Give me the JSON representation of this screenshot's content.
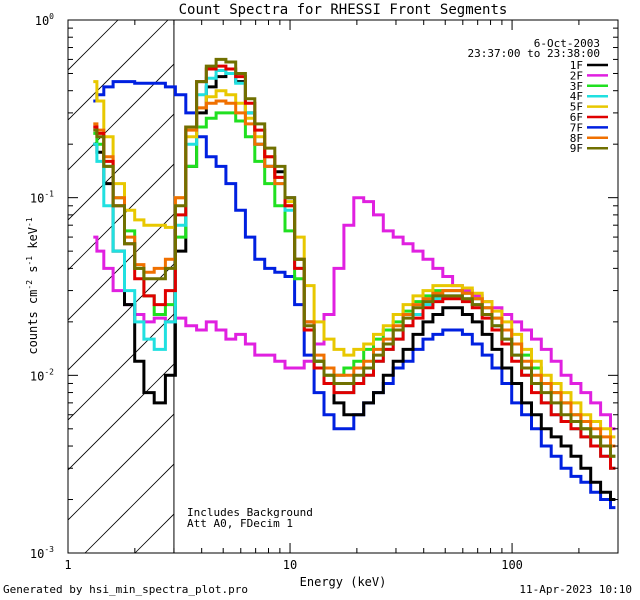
{
  "footer": {
    "generated_by": "Generated by hsi_min_spectra_plot.pro",
    "timestamp": "11-Apr-2023 10:10"
  },
  "chart_data": {
    "type": "line",
    "title": "Count Spectra for RHESSI Front Segments",
    "xlabel": "Energy (keV)",
    "ylabel_parts": [
      "counts cm",
      "-2",
      " s",
      "-1",
      " keV",
      "-1"
    ],
    "xscale": "log",
    "yscale": "log",
    "xlim": [
      1.0,
      300.0
    ],
    "ylim": [
      0.001,
      1.0
    ],
    "x_ticks": [
      {
        "value": 1,
        "label": "1"
      },
      {
        "value": 10,
        "label": "10"
      },
      {
        "value": 100,
        "label": "100"
      }
    ],
    "y_ticks": [
      {
        "value": 1,
        "base": "10",
        "exp": "0"
      },
      {
        "value": 0.1,
        "base": "10",
        "exp": "-1"
      },
      {
        "value": 0.01,
        "base": "10",
        "exp": "-2"
      },
      {
        "value": 0.001,
        "base": "10",
        "exp": "-3"
      }
    ],
    "hatched_region": {
      "x_min": 1.0,
      "x_max": 3.0
    },
    "date": "6-Oct-2003",
    "time_range": "23:37:00 to 23:38:00",
    "annotations": [
      "Includes Background",
      "Att A0, FDecim 1"
    ],
    "series": [
      {
        "name": "1F",
        "color": "#000000",
        "peak": 0.5,
        "low": 0.007,
        "bump": 0.024
      },
      {
        "name": "2F",
        "color": "#e020e0",
        "peak": 0.02,
        "low": 0.02,
        "bump": 0.03
      },
      {
        "name": "3F",
        "color": "#20e020",
        "peak": 0.3,
        "low": 0.012,
        "bump": 0.03
      },
      {
        "name": "4F",
        "color": "#20e0e0",
        "peak": 0.52,
        "low": 0.01,
        "bump": 0.028
      },
      {
        "name": "5F",
        "color": "#e8c800",
        "peak": 0.4,
        "low": 0.018,
        "bump": 0.032
      },
      {
        "name": "6F",
        "color": "#e00000",
        "peak": 0.55,
        "low": 0.01,
        "bump": 0.027
      },
      {
        "name": "7F",
        "color": "#0020e0",
        "peak": 0.45,
        "low": 0.006,
        "bump": 0.018
      },
      {
        "name": "8F",
        "color": "#f07000",
        "peak": 0.35,
        "low": 0.012,
        "bump": 0.03
      },
      {
        "name": "9F",
        "color": "#707000",
        "peak": 0.6,
        "low": 0.01,
        "bump": 0.028
      }
    ],
    "energy_bins": [
      1.3,
      1.4,
      1.5,
      1.7,
      1.9,
      2.1,
      2.3,
      2.6,
      2.9,
      3.2,
      3.6,
      4.0,
      4.4,
      4.9,
      5.4,
      6.0,
      6.6,
      7.3,
      8.1,
      9.0,
      10.0,
      11.0,
      12.2,
      13.5,
      15.0,
      16.6,
      18.4,
      20.4,
      22.6,
      25.0,
      27.7,
      30.7,
      34.0,
      37.7,
      41.8,
      46.3,
      51.3,
      56.8,
      62.9,
      69.7,
      77.2,
      85.5,
      94.7,
      104.9,
      116.2,
      128.7,
      142.6,
      158.0,
      175.0,
      193.9,
      214.8,
      238.0,
      263.6,
      292.0
    ],
    "values": {
      "1F": [
        0.2,
        0.18,
        0.12,
        0.05,
        0.025,
        0.012,
        0.008,
        0.007,
        0.01,
        0.05,
        0.15,
        0.3,
        0.42,
        0.48,
        0.5,
        0.45,
        0.3,
        0.2,
        0.15,
        0.14,
        0.1,
        0.045,
        0.02,
        0.012,
        0.009,
        0.007,
        0.006,
        0.006,
        0.007,
        0.008,
        0.01,
        0.012,
        0.014,
        0.017,
        0.02,
        0.022,
        0.024,
        0.024,
        0.022,
        0.02,
        0.017,
        0.014,
        0.011,
        0.009,
        0.007,
        0.006,
        0.005,
        0.0045,
        0.004,
        0.0035,
        0.003,
        0.0025,
        0.0022,
        0.002
      ],
      "2F": [
        0.06,
        0.05,
        0.04,
        0.03,
        0.025,
        0.022,
        0.02,
        0.021,
        0.02,
        0.021,
        0.019,
        0.018,
        0.02,
        0.018,
        0.016,
        0.017,
        0.015,
        0.013,
        0.013,
        0.012,
        0.011,
        0.011,
        0.012,
        0.015,
        0.022,
        0.04,
        0.07,
        0.1,
        0.095,
        0.08,
        0.065,
        0.06,
        0.055,
        0.05,
        0.045,
        0.04,
        0.036,
        0.032,
        0.03,
        0.028,
        0.026,
        0.024,
        0.022,
        0.02,
        0.018,
        0.016,
        0.014,
        0.012,
        0.01,
        0.009,
        0.008,
        0.007,
        0.006,
        0.005
      ],
      "3F": [
        0.23,
        0.2,
        0.15,
        0.1,
        0.065,
        0.04,
        0.028,
        0.022,
        0.025,
        0.06,
        0.15,
        0.25,
        0.28,
        0.3,
        0.3,
        0.27,
        0.22,
        0.16,
        0.12,
        0.09,
        0.065,
        0.035,
        0.018,
        0.012,
        0.01,
        0.01,
        0.011,
        0.012,
        0.014,
        0.016,
        0.018,
        0.02,
        0.023,
        0.026,
        0.028,
        0.03,
        0.03,
        0.03,
        0.029,
        0.027,
        0.024,
        0.021,
        0.018,
        0.015,
        0.013,
        0.011,
        0.009,
        0.008,
        0.007,
        0.006,
        0.005,
        0.0045,
        0.004,
        0.0035
      ],
      "4F": [
        0.2,
        0.16,
        0.09,
        0.05,
        0.03,
        0.02,
        0.016,
        0.014,
        0.02,
        0.07,
        0.2,
        0.38,
        0.47,
        0.52,
        0.5,
        0.44,
        0.3,
        0.2,
        0.15,
        0.12,
        0.085,
        0.04,
        0.018,
        0.011,
        0.009,
        0.008,
        0.008,
        0.009,
        0.01,
        0.012,
        0.014,
        0.016,
        0.019,
        0.022,
        0.025,
        0.027,
        0.028,
        0.028,
        0.027,
        0.025,
        0.022,
        0.019,
        0.016,
        0.013,
        0.01,
        0.009,
        0.007,
        0.006,
        0.0055,
        0.005,
        0.0045,
        0.004,
        0.0035,
        0.003
      ],
      "5F": [
        0.45,
        0.35,
        0.22,
        0.12,
        0.085,
        0.075,
        0.07,
        0.07,
        0.068,
        0.1,
        0.22,
        0.32,
        0.37,
        0.4,
        0.38,
        0.34,
        0.28,
        0.22,
        0.17,
        0.13,
        0.095,
        0.06,
        0.032,
        0.02,
        0.016,
        0.014,
        0.013,
        0.014,
        0.015,
        0.017,
        0.019,
        0.022,
        0.025,
        0.028,
        0.03,
        0.032,
        0.032,
        0.032,
        0.031,
        0.029,
        0.026,
        0.023,
        0.02,
        0.017,
        0.014,
        0.012,
        0.01,
        0.009,
        0.008,
        0.007,
        0.006,
        0.0055,
        0.005,
        0.0045
      ],
      "6F": [
        0.25,
        0.23,
        0.16,
        0.09,
        0.055,
        0.035,
        0.028,
        0.025,
        0.03,
        0.08,
        0.25,
        0.45,
        0.53,
        0.55,
        0.53,
        0.48,
        0.34,
        0.24,
        0.17,
        0.13,
        0.09,
        0.04,
        0.018,
        0.011,
        0.009,
        0.008,
        0.008,
        0.009,
        0.01,
        0.012,
        0.014,
        0.016,
        0.019,
        0.021,
        0.024,
        0.026,
        0.027,
        0.027,
        0.026,
        0.024,
        0.021,
        0.018,
        0.015,
        0.012,
        0.01,
        0.008,
        0.007,
        0.006,
        0.0055,
        0.005,
        0.0045,
        0.004,
        0.0035,
        0.003
      ],
      "7F": [
        0.35,
        0.38,
        0.42,
        0.45,
        0.45,
        0.44,
        0.44,
        0.44,
        0.42,
        0.38,
        0.3,
        0.22,
        0.17,
        0.15,
        0.12,
        0.085,
        0.06,
        0.045,
        0.04,
        0.038,
        0.036,
        0.025,
        0.013,
        0.008,
        0.006,
        0.005,
        0.005,
        0.006,
        0.007,
        0.008,
        0.009,
        0.011,
        0.012,
        0.014,
        0.016,
        0.017,
        0.018,
        0.018,
        0.017,
        0.015,
        0.013,
        0.011,
        0.009,
        0.007,
        0.006,
        0.005,
        0.004,
        0.0035,
        0.003,
        0.0027,
        0.0025,
        0.0022,
        0.002,
        0.0018
      ],
      "8F": [
        0.26,
        0.24,
        0.17,
        0.1,
        0.06,
        0.042,
        0.038,
        0.04,
        0.045,
        0.1,
        0.24,
        0.32,
        0.34,
        0.35,
        0.34,
        0.3,
        0.26,
        0.2,
        0.15,
        0.12,
        0.09,
        0.045,
        0.02,
        0.013,
        0.011,
        0.01,
        0.01,
        0.011,
        0.012,
        0.014,
        0.016,
        0.019,
        0.022,
        0.025,
        0.027,
        0.029,
        0.03,
        0.03,
        0.029,
        0.027,
        0.024,
        0.021,
        0.018,
        0.015,
        0.012,
        0.01,
        0.009,
        0.008,
        0.007,
        0.006,
        0.0055,
        0.005,
        0.0045,
        0.004
      ],
      "9F": [
        0.24,
        0.22,
        0.15,
        0.09,
        0.055,
        0.04,
        0.035,
        0.035,
        0.04,
        0.09,
        0.25,
        0.45,
        0.55,
        0.6,
        0.58,
        0.5,
        0.36,
        0.26,
        0.19,
        0.15,
        0.1,
        0.045,
        0.019,
        0.012,
        0.01,
        0.009,
        0.009,
        0.01,
        0.011,
        0.013,
        0.015,
        0.018,
        0.021,
        0.024,
        0.026,
        0.028,
        0.028,
        0.028,
        0.027,
        0.025,
        0.022,
        0.019,
        0.016,
        0.013,
        0.011,
        0.009,
        0.008,
        0.007,
        0.006,
        0.0055,
        0.005,
        0.0045,
        0.004,
        0.0035
      ]
    }
  }
}
